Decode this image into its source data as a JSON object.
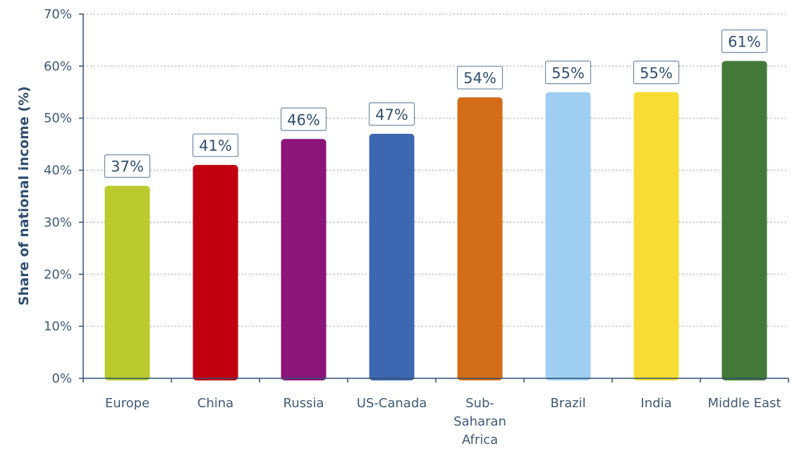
{
  "chart_data": {
    "type": "bar",
    "title": "",
    "xlabel": "",
    "ylabel": "Share of national income (%)",
    "ylim": [
      0,
      70
    ],
    "y_tick_step": 10,
    "y_tick_format": "{v}%",
    "grid": "horizontal-dotted",
    "legend": "none",
    "categories": [
      [
        "Europe"
      ],
      [
        "China"
      ],
      [
        "Russia"
      ],
      [
        "US-Canada"
      ],
      [
        "Sub-",
        "Saharan",
        "Africa"
      ],
      [
        "Brazil"
      ],
      [
        "India"
      ],
      [
        "Middle East"
      ]
    ],
    "values": [
      37,
      41,
      46,
      47,
      54,
      55,
      55,
      61
    ],
    "data_labels": [
      "37%",
      "41%",
      "46%",
      "47%",
      "54%",
      "55%",
      "55%",
      "61%"
    ],
    "colors": [
      "#b9cb2d",
      "#c0000f",
      "#8b1578",
      "#3e67b1",
      "#d46d1a",
      "#9ecff3",
      "#f6dc33",
      "#437a39"
    ],
    "axis_color": "#2f4f70",
    "grid_color": "#9a9a9a"
  }
}
